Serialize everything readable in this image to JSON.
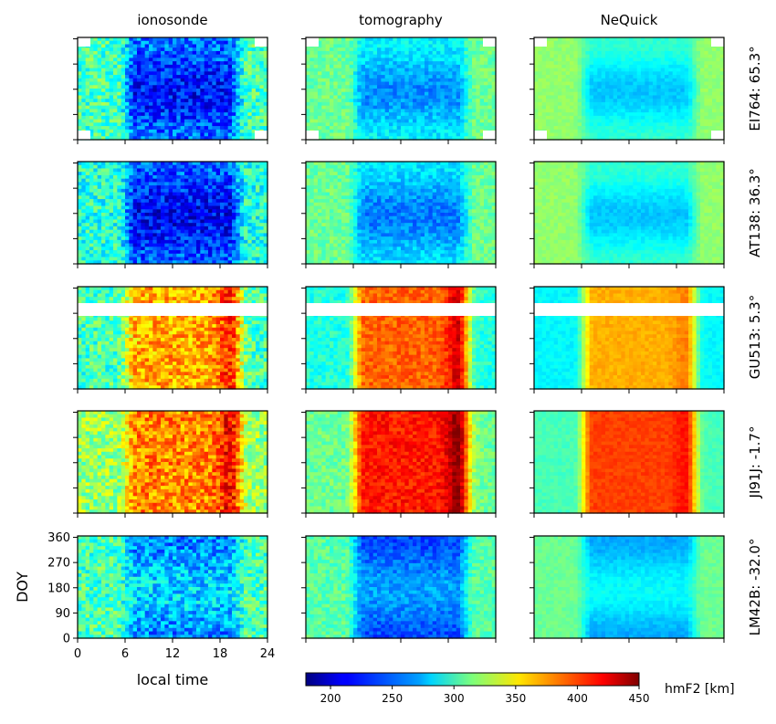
{
  "chart_data": {
    "type": "heatmap",
    "columns": [
      "ionosonde",
      "tomography",
      "NeQuick"
    ],
    "rows": [
      {
        "station": "EI764",
        "label": "EI764: 65.3°"
      },
      {
        "station": "AT138",
        "label": "AT138: 36.3°"
      },
      {
        "station": "GU513",
        "label": "GU513: 5.3°"
      },
      {
        "station": "JI91J",
        "label": "JI91J: -1.7°"
      },
      {
        "station": "LM42B",
        "label": "LM42B: -32.0°"
      }
    ],
    "xlabel": "local time",
    "ylabel": "DOY",
    "xlim": [
      0,
      24
    ],
    "ylim": [
      0,
      365
    ],
    "xticks": [
      "0",
      "6",
      "12",
      "18",
      "24"
    ],
    "xtick_values": [
      0,
      6,
      12,
      18,
      24
    ],
    "yticks": [
      "0",
      "90",
      "180",
      "270",
      "360"
    ],
    "ytick_values": [
      0,
      90,
      180,
      270,
      360
    ],
    "colorbar": {
      "label": "hmF2 [km]",
      "min": 180,
      "max": 450,
      "ticks": [
        "200",
        "250",
        "300",
        "350",
        "400",
        "450"
      ],
      "tick_values": [
        200,
        250,
        300,
        350,
        400,
        450
      ],
      "colormap": "jet"
    },
    "approx_fields": {
      "EI764": {
        "ionosonde": {
          "day": 230,
          "night": 300
        },
        "tomography": {
          "day": 265,
          "night": 310
        },
        "NeQuick": {
          "day": 280,
          "night": 320
        }
      },
      "AT138": {
        "ionosonde": {
          "day": 225,
          "night": 290
        },
        "tomography": {
          "day": 260,
          "night": 310
        },
        "NeQuick": {
          "day": 280,
          "night": 320
        }
      },
      "GU513": {
        "ionosonde": {
          "day": 370,
          "night": 300
        },
        "tomography": {
          "day": 390,
          "night": 290
        },
        "NeQuick": {
          "day": 370,
          "night": 280
        }
      },
      "JI91J": {
        "ionosonde": {
          "day": 380,
          "night": 320
        },
        "tomography": {
          "day": 410,
          "night": 310
        },
        "NeQuick": {
          "day": 400,
          "night": 300
        }
      },
      "LM42B": {
        "ionosonde": {
          "day": 260,
          "night": 300
        },
        "tomography": {
          "day": 245,
          "night": 305
        },
        "NeQuick": {
          "day": 270,
          "night": 310
        }
      }
    }
  }
}
